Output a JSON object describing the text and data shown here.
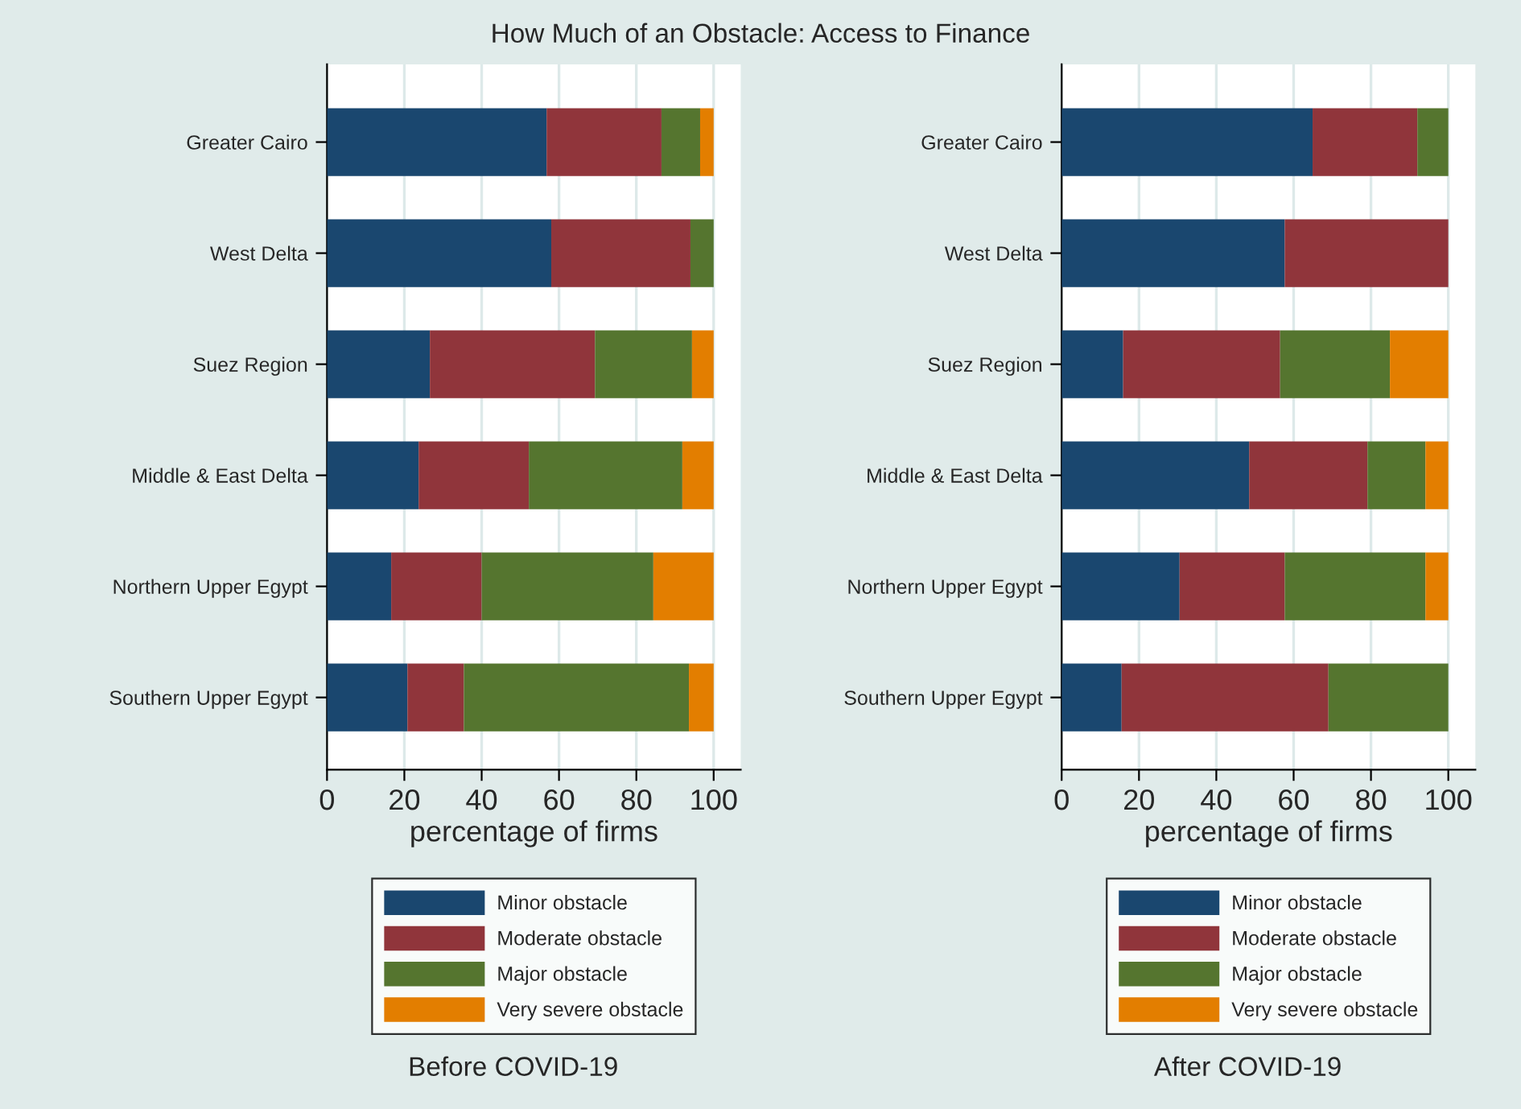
{
  "chart_data": [
    {
      "type": "bar",
      "orientation": "horizontal",
      "stacked": true,
      "title": "How Much of an Obstacle: Access to Finance",
      "subtitle": "Before COVID-19",
      "xlabel": "percentage of firms",
      "categories": [
        "Greater Cairo",
        "West Delta",
        "Suez Region",
        "Middle & East Delta",
        "Northern Upper Egypt",
        "Southern Upper Egypt"
      ],
      "series": [
        {
          "name": "Minor obstacle",
          "color": "#1a476f",
          "values": [
            56.8,
            58,
            26.6,
            23.7,
            16.6,
            20.8
          ]
        },
        {
          "name": "Moderate obstacle",
          "color": "#90353b",
          "values": [
            29.7,
            36,
            42.7,
            28.5,
            23.4,
            14.6
          ]
        },
        {
          "name": "Major obstacle",
          "color": "#55752f",
          "values": [
            10,
            6,
            25.1,
            39.7,
            44.4,
            58.2
          ]
        },
        {
          "name": "Very severe obstacle",
          "color": "#e37e00",
          "values": [
            3.5,
            0,
            5.6,
            8.1,
            15.6,
            6.4
          ]
        }
      ],
      "xlim": [
        0,
        107
      ],
      "xticks": [
        0,
        20,
        40,
        60,
        80,
        100
      ],
      "grid": "x",
      "legend": "bottom"
    },
    {
      "type": "bar",
      "orientation": "horizontal",
      "stacked": true,
      "subtitle": "After COVID-19",
      "xlabel": "percentage of firms",
      "categories": [
        "Greater Cairo",
        "West Delta",
        "Suez Region",
        "Middle & East Delta",
        "Northern Upper Egypt",
        "Southern Upper Egypt"
      ],
      "series": [
        {
          "name": "Minor obstacle",
          "color": "#1a476f",
          "values": [
            64.9,
            57.7,
            15.9,
            48.5,
            30.5,
            15.5
          ]
        },
        {
          "name": "Moderate obstacle",
          "color": "#90353b",
          "values": [
            27.1,
            42.3,
            40.6,
            30.6,
            27.2,
            53.5
          ]
        },
        {
          "name": "Major obstacle",
          "color": "#55752f",
          "values": [
            8,
            0,
            28.4,
            15,
            36.4,
            31
          ]
        },
        {
          "name": "Very severe obstacle",
          "color": "#e37e00",
          "values": [
            0,
            0,
            15.1,
            5.9,
            5.9,
            0
          ]
        }
      ],
      "xlim": [
        0,
        107
      ],
      "xticks": [
        0,
        20,
        40,
        60,
        80,
        100
      ],
      "grid": "x",
      "legend": "bottom"
    }
  ]
}
